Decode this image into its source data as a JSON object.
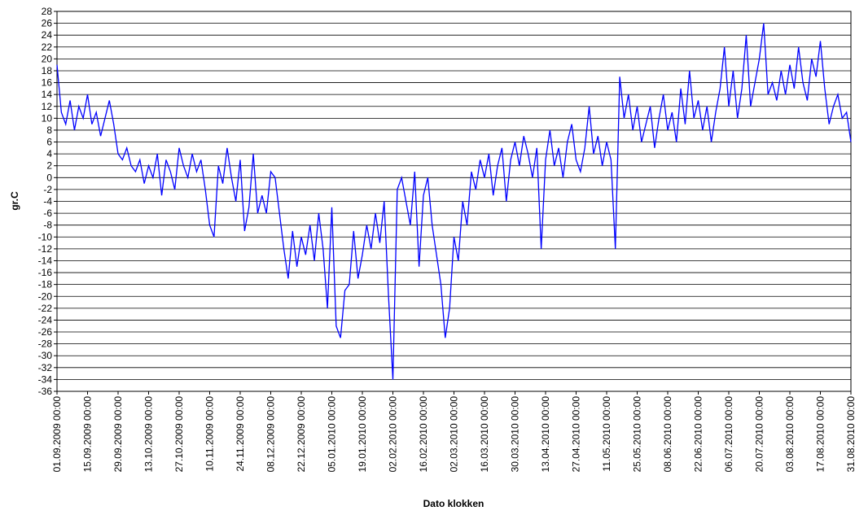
{
  "chart_data": {
    "type": "line",
    "y_label": "gr.C",
    "x_label": "Dato klokken",
    "color": "#0000ff",
    "grid": true,
    "ylim": [
      -36,
      28
    ],
    "yticks": [
      -36,
      -34,
      -32,
      -30,
      -28,
      -26,
      -24,
      -22,
      -20,
      -18,
      -16,
      -14,
      -12,
      -10,
      -8,
      -6,
      -4,
      -2,
      0,
      2,
      4,
      6,
      8,
      10,
      12,
      14,
      16,
      18,
      20,
      22,
      24,
      26,
      28
    ],
    "xticks": [
      "01.09.2009 00:00",
      "15.09.2009 00:00",
      "29.09.2009 00:00",
      "13.10.2009 00:00",
      "27.10.2009 00:00",
      "10.11.2009 00:00",
      "24.11.2009 00:00",
      "08.12.2009 00:00",
      "22.12.2009 00:00",
      "05.01.2010 00:00",
      "19.01.2010 00:00",
      "02.02.2010 00:00",
      "16.02.2010 00:00",
      "02.03.2010 00:00",
      "16.03.2010 00:00",
      "30.03.2010 00:00",
      "13.04.2010 00:00",
      "27.04.2010 00:00",
      "11.05.2010 00:00",
      "25.05.2010 00:00",
      "08.06.2010 00:00",
      "22.06.2010 00:00",
      "06.07.2010 00:00",
      "20.07.2010 00:00",
      "03.08.2010 00:00",
      "17.08.2010 00:00",
      "31.08.2010 00:00"
    ],
    "x": [
      "01.09.2009 00:00",
      "03.09.2009 00:00",
      "05.09.2009 00:00",
      "07.09.2009 00:00",
      "09.09.2009 00:00",
      "11.09.2009 00:00",
      "13.09.2009 00:00",
      "15.09.2009 00:00",
      "17.09.2009 00:00",
      "19.09.2009 00:00",
      "21.09.2009 00:00",
      "23.09.2009 00:00",
      "25.09.2009 00:00",
      "27.09.2009 00:00",
      "29.09.2009 00:00",
      "01.10.2009 00:00",
      "03.10.2009 00:00",
      "05.10.2009 00:00",
      "07.10.2009 00:00",
      "09.10.2009 00:00",
      "11.10.2009 00:00",
      "13.10.2009 00:00",
      "15.10.2009 00:00",
      "17.10.2009 00:00",
      "19.10.2009 00:00",
      "21.10.2009 00:00",
      "23.10.2009 00:00",
      "25.10.2009 00:00",
      "27.10.2009 00:00",
      "29.10.2009 00:00",
      "31.10.2009 00:00",
      "02.11.2009 00:00",
      "04.11.2009 00:00",
      "06.11.2009 00:00",
      "08.11.2009 00:00",
      "10.11.2009 00:00",
      "12.11.2009 00:00",
      "14.11.2009 00:00",
      "16.11.2009 00:00",
      "18.11.2009 00:00",
      "20.11.2009 00:00",
      "22.11.2009 00:00",
      "24.11.2009 00:00",
      "26.11.2009 00:00",
      "28.11.2009 00:00",
      "30.11.2009 00:00",
      "02.12.2009 00:00",
      "04.12.2009 00:00",
      "06.12.2009 00:00",
      "08.12.2009 00:00",
      "10.12.2009 00:00",
      "12.12.2009 00:00",
      "14.12.2009 00:00",
      "16.12.2009 00:00",
      "18.12.2009 00:00",
      "20.12.2009 00:00",
      "22.12.2009 00:00",
      "24.12.2009 00:00",
      "26.12.2009 00:00",
      "28.12.2009 00:00",
      "30.12.2009 00:00",
      "01.01.2010 00:00",
      "03.01.2010 00:00",
      "05.01.2010 00:00",
      "07.01.2010 00:00",
      "09.01.2010 00:00",
      "11.01.2010 00:00",
      "13.01.2010 00:00",
      "15.01.2010 00:00",
      "17.01.2010 00:00",
      "19.01.2010 00:00",
      "21.01.2010 00:00",
      "23.01.2010 00:00",
      "25.01.2010 00:00",
      "27.01.2010 00:00",
      "29.01.2010 00:00",
      "31.01.2010 00:00",
      "02.02.2010 00:00",
      "04.02.2010 00:00",
      "06.02.2010 00:00",
      "08.02.2010 00:00",
      "10.02.2010 00:00",
      "12.02.2010 00:00",
      "14.02.2010 00:00",
      "16.02.2010 00:00",
      "18.02.2010 00:00",
      "20.02.2010 00:00",
      "22.02.2010 00:00",
      "24.02.2010 00:00",
      "26.02.2010 00:00",
      "28.02.2010 00:00",
      "02.03.2010 00:00",
      "04.03.2010 00:00",
      "06.03.2010 00:00",
      "08.03.2010 00:00",
      "10.03.2010 00:00",
      "12.03.2010 00:00",
      "14.03.2010 00:00",
      "16.03.2010 00:00",
      "18.03.2010 00:00",
      "20.03.2010 00:00",
      "22.03.2010 00:00",
      "24.03.2010 00:00",
      "26.03.2010 00:00",
      "28.03.2010 00:00",
      "30.03.2010 00:00",
      "01.04.2010 00:00",
      "03.04.2010 00:00",
      "05.04.2010 00:00",
      "07.04.2010 00:00",
      "09.04.2010 00:00",
      "11.04.2010 00:00",
      "13.04.2010 00:00",
      "15.04.2010 00:00",
      "17.04.2010 00:00",
      "19.04.2010 00:00",
      "21.04.2010 00:00",
      "23.04.2010 00:00",
      "25.04.2010 00:00",
      "27.04.2010 00:00",
      "29.04.2010 00:00",
      "01.05.2010 00:00",
      "03.05.2010 00:00",
      "05.05.2010 00:00",
      "07.05.2010 00:00",
      "09.05.2010 00:00",
      "11.05.2010 00:00",
      "13.05.2010 00:00",
      "15.05.2010 00:00",
      "17.05.2010 00:00",
      "19.05.2010 00:00",
      "21.05.2010 00:00",
      "23.05.2010 00:00",
      "25.05.2010 00:00",
      "27.05.2010 00:00",
      "29.05.2010 00:00",
      "31.05.2010 00:00",
      "02.06.2010 00:00",
      "04.06.2010 00:00",
      "06.06.2010 00:00",
      "08.06.2010 00:00",
      "10.06.2010 00:00",
      "12.06.2010 00:00",
      "14.06.2010 00:00",
      "16.06.2010 00:00",
      "18.06.2010 00:00",
      "20.06.2010 00:00",
      "22.06.2010 00:00",
      "24.06.2010 00:00",
      "26.06.2010 00:00",
      "28.06.2010 00:00",
      "30.06.2010 00:00",
      "02.07.2010 00:00",
      "04.07.2010 00:00",
      "06.07.2010 00:00",
      "08.07.2010 00:00",
      "10.07.2010 00:00",
      "12.07.2010 00:00",
      "14.07.2010 00:00",
      "16.07.2010 00:00",
      "18.07.2010 00:00",
      "20.07.2010 00:00",
      "22.07.2010 00:00",
      "24.07.2010 00:00",
      "26.07.2010 00:00",
      "28.07.2010 00:00",
      "30.07.2010 00:00",
      "01.08.2010 00:00",
      "03.08.2010 00:00",
      "05.08.2010 00:00",
      "07.08.2010 00:00",
      "09.08.2010 00:00",
      "11.08.2010 00:00",
      "13.08.2010 00:00",
      "15.08.2010 00:00",
      "17.08.2010 00:00",
      "19.08.2010 00:00",
      "21.08.2010 00:00",
      "23.08.2010 00:00",
      "25.08.2010 00:00",
      "27.08.2010 00:00",
      "29.08.2010 00:00",
      "31.08.2010 00:00"
    ],
    "values": [
      19,
      11,
      9,
      13,
      8,
      12,
      10,
      14,
      9,
      11,
      7,
      10,
      13,
      9,
      4,
      3,
      5,
      2,
      1,
      3,
      -1,
      2,
      0,
      4,
      -3,
      3,
      1,
      -2,
      5,
      2,
      0,
      4,
      1,
      3,
      -2,
      -8,
      -10,
      2,
      -1,
      5,
      0,
      -4,
      3,
      -9,
      -5,
      4,
      -6,
      -3,
      -6,
      1,
      0,
      -6,
      -12,
      -17,
      -9,
      -15,
      -10,
      -13,
      -8,
      -14,
      -6,
      -12,
      -22,
      -5,
      -25,
      -27,
      -19,
      -18,
      -9,
      -17,
      -13,
      -8,
      -12,
      -6,
      -11,
      -4,
      -20,
      -34,
      -2,
      0,
      -4,
      -8,
      1,
      -15,
      -3,
      0,
      -8,
      -13,
      -18,
      -27,
      -22,
      -10,
      -14,
      -4,
      -8,
      1,
      -2,
      3,
      0,
      4,
      -3,
      2,
      5,
      -4,
      3,
      6,
      2,
      7,
      4,
      0,
      5,
      -12,
      3,
      8,
      2,
      5,
      0,
      6,
      9,
      3,
      1,
      5,
      12,
      4,
      7,
      2,
      6,
      3,
      -12,
      17,
      10,
      14,
      8,
      12,
      6,
      9,
      12,
      5,
      10,
      14,
      8,
      11,
      6,
      15,
      9,
      18,
      10,
      13,
      8,
      12,
      6,
      11,
      15,
      22,
      12,
      18,
      10,
      15,
      24,
      12,
      16,
      20,
      26,
      14,
      16,
      13,
      18,
      14,
      19,
      15,
      22,
      16,
      13,
      20,
      17,
      23,
      15,
      9,
      12,
      14,
      10,
      11,
      6
    ]
  }
}
